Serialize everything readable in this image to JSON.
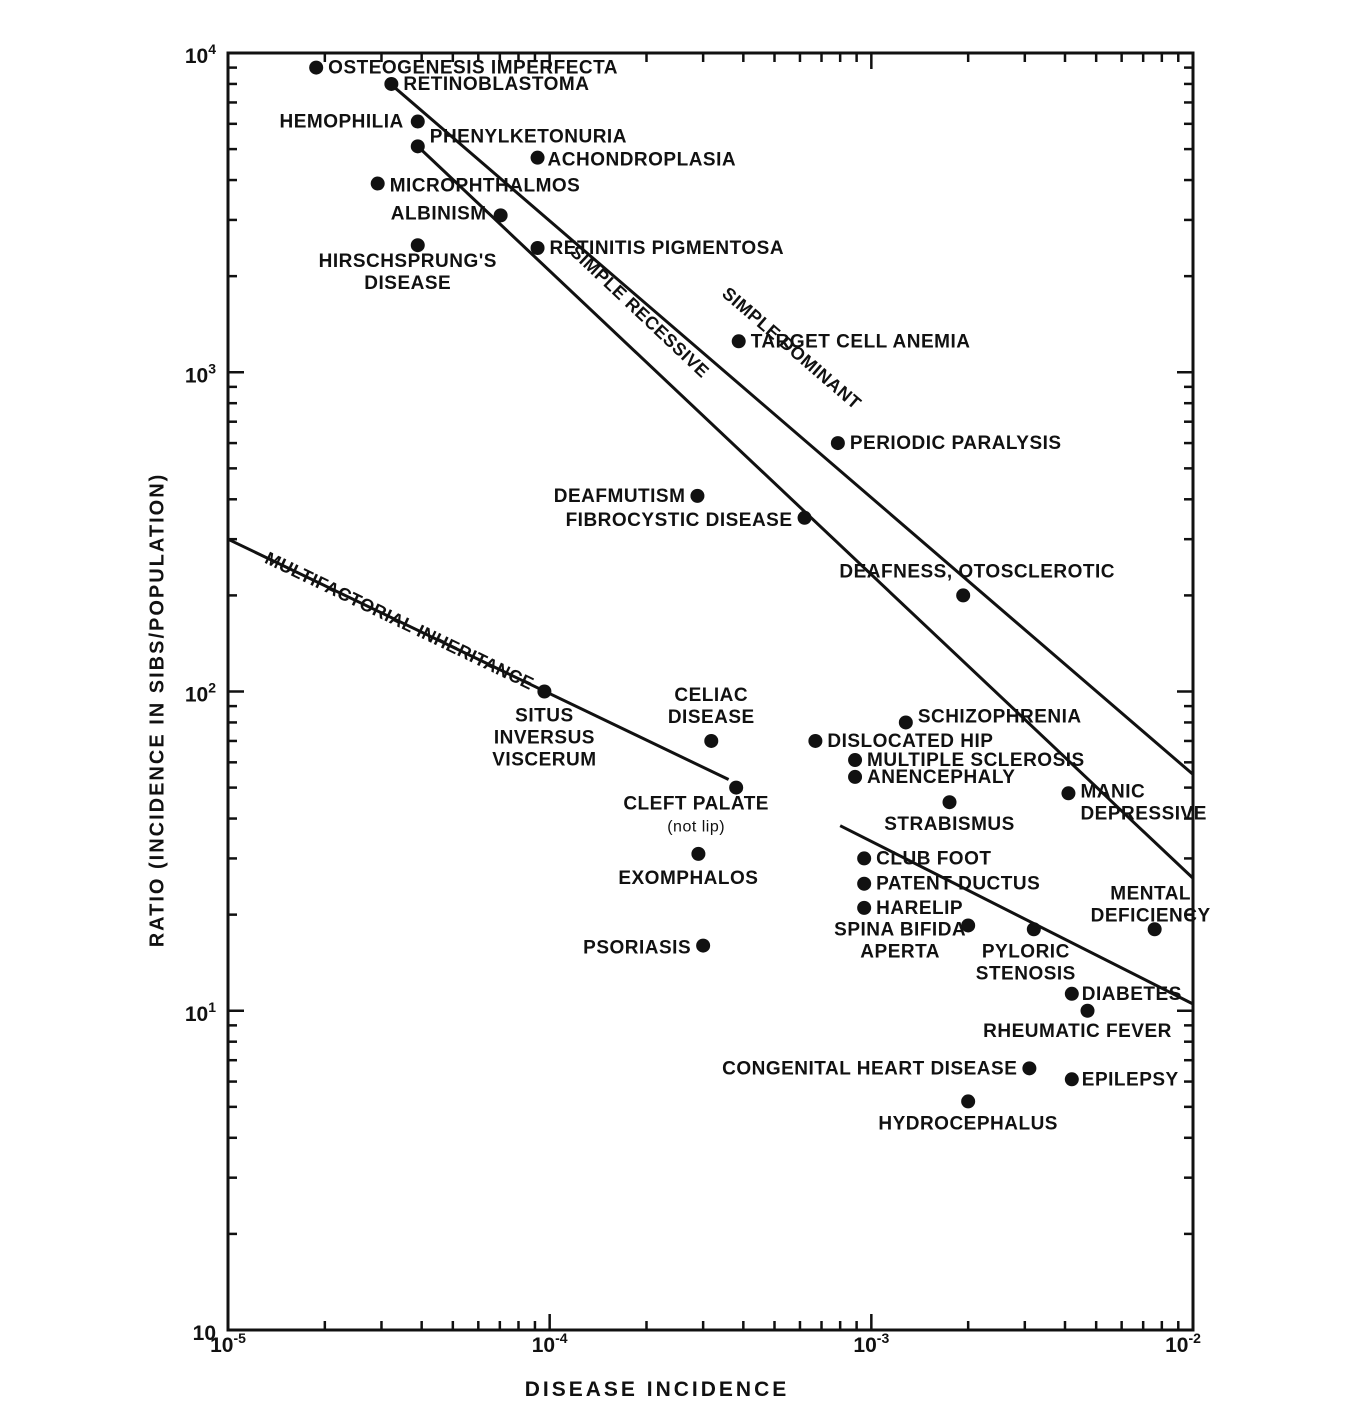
{
  "chart_data": {
    "type": "scatter",
    "title": "",
    "xlabel": "DISEASE INCIDENCE",
    "ylabel": "RATIO (INCIDENCE IN SIBS/POPULATION)",
    "x_scale": "log",
    "y_scale": "log",
    "xlim": [
      1e-05,
      0.01
    ],
    "ylim": [
      1,
      10000
    ],
    "x_ticks": [
      {
        "value": 1e-05,
        "base": "10",
        "exp": "-5"
      },
      {
        "value": 0.0001,
        "base": "10",
        "exp": "-4"
      },
      {
        "value": 0.001,
        "base": "10",
        "exp": "-3"
      },
      {
        "value": 0.01,
        "base": "10",
        "exp": "-2"
      }
    ],
    "y_ticks": [
      {
        "value": 1,
        "base": "10",
        "exp": ""
      },
      {
        "value": 10,
        "base": "10",
        "exp": "1"
      },
      {
        "value": 100,
        "base": "10",
        "exp": "2"
      },
      {
        "value": 1000,
        "base": "10",
        "exp": "3"
      },
      {
        "value": 10000,
        "base": "10",
        "exp": "4"
      }
    ],
    "grid": false,
    "points": [
      {
        "name": "OSTEOGENESIS IMPERFECTA",
        "x": 1.88e-05,
        "y": 9000
      },
      {
        "name": "RETINOBLASTOMA",
        "x": 3.22e-05,
        "y": 8000
      },
      {
        "name": "HEMOPHILIA",
        "x": 3.89e-05,
        "y": 6100
      },
      {
        "name": "PHENYLKETONURIA",
        "x": 3.89e-05,
        "y": 5100
      },
      {
        "name": "ACHONDROPLASIA",
        "x": 9.17e-05,
        "y": 4700
      },
      {
        "name": "MICROPHTHALMOS",
        "x": 2.92e-05,
        "y": 3900
      },
      {
        "name": "ALBINISM",
        "x": 7.04e-05,
        "y": 3100
      },
      {
        "name": "RETINITIS PIGMENTOSA",
        "x": 9.17e-05,
        "y": 2450
      },
      {
        "name": "HIRSCHSPRUNG'S DISEASE",
        "x": 3.89e-05,
        "y": 2500
      },
      {
        "name": "TARGET CELL ANEMIA",
        "x": 0.000387,
        "y": 1250
      },
      {
        "name": "PERIODIC PARALYSIS",
        "x": 0.000787,
        "y": 600
      },
      {
        "name": "DEAFMUTISM",
        "x": 0.000288,
        "y": 410
      },
      {
        "name": "FIBROCYSTIC DISEASE",
        "x": 0.00062,
        "y": 350
      },
      {
        "name": "DEAFNESS, OTOSCLEROTIC",
        "x": 0.00193,
        "y": 200
      },
      {
        "name": "SITUS INVERSUS VISCERUM",
        "x": 9.63e-05,
        "y": 100
      },
      {
        "name": "CELIAC DISEASE",
        "x": 0.000318,
        "y": 70
      },
      {
        "name": "SCHIZOPHRENIA",
        "x": 0.00128,
        "y": 80
      },
      {
        "name": "DISLOCATED HIP",
        "x": 0.00067,
        "y": 70
      },
      {
        "name": "MULTIPLE SCLEROSIS",
        "x": 0.00089,
        "y": 61
      },
      {
        "name": "ANENCEPHALY",
        "x": 0.00089,
        "y": 54
      },
      {
        "name": "MANIC DEPRESSIVE",
        "x": 0.0041,
        "y": 48
      },
      {
        "name": "CLEFT PALATE (not lip)",
        "x": 0.00038,
        "y": 50
      },
      {
        "name": "STRABISMUS",
        "x": 0.00175,
        "y": 45
      },
      {
        "name": "CLUB FOOT",
        "x": 0.00095,
        "y": 30
      },
      {
        "name": "EXOMPHALOS",
        "x": 0.00029,
        "y": 31
      },
      {
        "name": "PATENT DUCTUS",
        "x": 0.00095,
        "y": 25
      },
      {
        "name": "HARELIP",
        "x": 0.00095,
        "y": 21
      },
      {
        "name": "SPINA BIFIDA APERTA",
        "x": 0.002,
        "y": 18.5
      },
      {
        "name": "PYLORIC STENOSIS",
        "x": 0.0032,
        "y": 18
      },
      {
        "name": "MENTAL DEFICIENCY",
        "x": 0.0076,
        "y": 18
      },
      {
        "name": "PSORIASIS",
        "x": 0.0003,
        "y": 16
      },
      {
        "name": "DIABETES",
        "x": 0.0042,
        "y": 11.3
      },
      {
        "name": "RHEUMATIC FEVER",
        "x": 0.0047,
        "y": 10
      },
      {
        "name": "CONGENITAL HEART DISEASE",
        "x": 0.0031,
        "y": 6.6
      },
      {
        "name": "EPILEPSY",
        "x": 0.0042,
        "y": 6.1
      },
      {
        "name": "HYDROCEPHALUS",
        "x": 0.002,
        "y": 5.2
      }
    ],
    "lines": [
      {
        "name": "SIMPLE DOMINANT",
        "x": [
          3.2e-05,
          0.01
        ],
        "y": [
          8000,
          55
        ]
      },
      {
        "name": "SIMPLE RECESSIVE",
        "x": [
          3.89e-05,
          0.01
        ],
        "y": [
          5100,
          26
        ]
      },
      {
        "name": "MULTIFACTORIAL INHERITANCE",
        "x": [
          1e-05,
          0.00036
        ],
        "y": [
          300,
          53
        ]
      },
      {
        "name": "",
        "x": [
          0.0008,
          0.01
        ],
        "y": [
          38,
          10.5
        ]
      }
    ],
    "line_labels": [
      "SIMPLE DOMINANT",
      "SIMPLE RECESSIVE",
      "MULTIFACTORIAL INHERITANCE"
    ]
  }
}
